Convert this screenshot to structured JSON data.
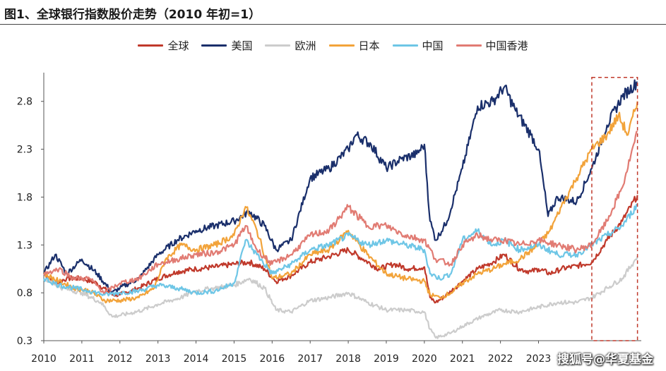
{
  "title": "图1、全球银行指数股价走势（2010 年初=1）",
  "watermark": "搜狐号@华夏基金",
  "chart_data": {
    "type": "line",
    "title": "图1、全球银行指数股价走势（2010 年初=1）",
    "xlabel": "",
    "ylabel": "",
    "xlim": [
      2010,
      2025.7
    ],
    "ylim": [
      0.3,
      3.1
    ],
    "x_ticks": [
      "2010",
      "2011",
      "2012",
      "2013",
      "2014",
      "2015",
      "2016",
      "2017",
      "2018",
      "2019",
      "2020",
      "2021",
      "2022",
      "2023"
    ],
    "y_ticks": [
      "0.3",
      "0.8",
      "1.3",
      "1.8",
      "2.3",
      "2.8"
    ],
    "legend_position": "top",
    "grid": false,
    "highlight_box": {
      "x": [
        2024.4,
        2025.6
      ],
      "y": [
        0.3,
        3.05
      ]
    },
    "series": [
      {
        "name": "全球",
        "color": "#c0392b",
        "x": [
          2010,
          2010.3,
          2010.6,
          2011,
          2011.4,
          2011.8,
          2012,
          2012.5,
          2013,
          2013.5,
          2014,
          2014.5,
          2015,
          2015.4,
          2015.8,
          2016.1,
          2016.5,
          2017,
          2017.5,
          2018,
          2018.4,
          2018.8,
          2019.2,
          2019.6,
          2020,
          2020.15,
          2020.3,
          2020.6,
          2021,
          2021.4,
          2021.8,
          2022.1,
          2022.5,
          2022.8,
          2023,
          2023.3,
          2023.6,
          2024,
          2024.4,
          2024.8,
          2025.2,
          2025.6
        ],
        "values": [
          1.0,
          0.9,
          0.95,
          0.95,
          0.9,
          0.78,
          0.78,
          0.85,
          0.95,
          1.02,
          1.05,
          1.07,
          1.1,
          1.12,
          1.05,
          0.92,
          0.98,
          1.12,
          1.18,
          1.25,
          1.15,
          1.05,
          1.1,
          1.05,
          1.07,
          0.75,
          0.7,
          0.78,
          0.92,
          1.05,
          1.12,
          1.2,
          1.05,
          1.02,
          1.05,
          1.0,
          1.05,
          1.08,
          1.12,
          1.35,
          1.55,
          1.82
        ]
      },
      {
        "name": "美国",
        "color": "#1a2f6b",
        "x": [
          2010,
          2010.3,
          2010.6,
          2011,
          2011.4,
          2011.8,
          2012,
          2012.5,
          2013,
          2013.5,
          2014,
          2014.5,
          2015,
          2015.4,
          2015.8,
          2016.1,
          2016.5,
          2017,
          2017.5,
          2018,
          2018.2,
          2018.6,
          2019,
          2019.4,
          2019.8,
          2020,
          2020.15,
          2020.3,
          2020.6,
          2021,
          2021.4,
          2021.8,
          2022.1,
          2022.4,
          2022.8,
          2023,
          2023.25,
          2023.5,
          2024,
          2024.4,
          2024.8,
          2025.2,
          2025.6
        ],
        "values": [
          1.0,
          1.2,
          1.0,
          1.15,
          1.0,
          0.8,
          0.85,
          0.95,
          1.2,
          1.35,
          1.45,
          1.5,
          1.55,
          1.65,
          1.5,
          1.25,
          1.35,
          2.0,
          2.1,
          2.3,
          2.45,
          2.35,
          2.1,
          2.2,
          2.25,
          2.35,
          1.55,
          1.35,
          1.55,
          2.1,
          2.75,
          2.8,
          2.95,
          2.7,
          2.45,
          2.3,
          1.6,
          1.8,
          1.75,
          2.1,
          2.55,
          2.85,
          3.0
        ]
      },
      {
        "name": "欧洲",
        "color": "#cccccc",
        "x": [
          2010,
          2010.5,
          2011,
          2011.5,
          2011.8,
          2012.2,
          2012.6,
          2013,
          2013.6,
          2014,
          2014.5,
          2015,
          2015.4,
          2015.8,
          2016.1,
          2016.5,
          2017,
          2017.5,
          2018,
          2018.5,
          2019,
          2019.5,
          2020,
          2020.15,
          2020.3,
          2020.7,
          2021,
          2021.5,
          2022,
          2022.5,
          2023,
          2023.5,
          2024,
          2024.4,
          2024.8,
          2025.2,
          2025.6
        ],
        "values": [
          0.95,
          0.85,
          0.8,
          0.7,
          0.55,
          0.58,
          0.62,
          0.68,
          0.75,
          0.82,
          0.85,
          0.88,
          0.95,
          0.85,
          0.62,
          0.6,
          0.72,
          0.75,
          0.8,
          0.7,
          0.62,
          0.62,
          0.6,
          0.42,
          0.33,
          0.38,
          0.45,
          0.55,
          0.62,
          0.6,
          0.65,
          0.7,
          0.7,
          0.75,
          0.85,
          0.95,
          1.18
        ]
      },
      {
        "name": "日本",
        "color": "#f2a33a",
        "x": [
          2010,
          2010.4,
          2010.8,
          2011.2,
          2011.6,
          2012,
          2012.5,
          2012.9,
          2013.2,
          2013.6,
          2014,
          2014.5,
          2015,
          2015.3,
          2015.6,
          2016,
          2016.5,
          2017,
          2017.5,
          2018,
          2018.5,
          2019,
          2019.5,
          2020,
          2020.15,
          2020.4,
          2020.7,
          2021,
          2021.4,
          2021.8,
          2022.1,
          2022.5,
          2023,
          2023.3,
          2023.6,
          2024,
          2024.4,
          2024.8,
          2025.1,
          2025.35,
          2025.6
        ],
        "values": [
          1.0,
          0.92,
          0.85,
          0.82,
          0.72,
          0.72,
          0.75,
          0.85,
          1.15,
          1.3,
          1.25,
          1.3,
          1.4,
          1.7,
          1.45,
          0.95,
          1.0,
          1.2,
          1.25,
          1.45,
          1.2,
          1.0,
          0.95,
          0.92,
          0.78,
          0.75,
          0.8,
          0.9,
          1.0,
          1.05,
          1.1,
          1.15,
          1.3,
          1.45,
          1.7,
          2.0,
          2.3,
          2.45,
          2.65,
          2.45,
          2.8
        ]
      },
      {
        "name": "中国",
        "color": "#6ec6e6",
        "x": [
          2010,
          2010.4,
          2010.8,
          2011.2,
          2011.6,
          2012,
          2012.5,
          2013,
          2013.5,
          2014,
          2014.5,
          2015,
          2015.3,
          2015.6,
          2016,
          2016.5,
          2017,
          2017.5,
          2018,
          2018.5,
          2019,
          2019.5,
          2020,
          2020.15,
          2020.4,
          2020.7,
          2021,
          2021.4,
          2021.8,
          2022.1,
          2022.5,
          2023,
          2023.5,
          2024,
          2024.4,
          2024.8,
          2025.2,
          2025.6
        ],
        "values": [
          0.95,
          0.88,
          0.85,
          0.82,
          0.78,
          0.8,
          0.82,
          0.88,
          0.85,
          0.8,
          0.82,
          0.9,
          1.35,
          1.2,
          1.0,
          1.1,
          1.25,
          1.3,
          1.4,
          1.3,
          1.35,
          1.3,
          1.25,
          1.0,
          0.95,
          1.0,
          1.35,
          1.45,
          1.3,
          1.35,
          1.25,
          1.3,
          1.2,
          1.2,
          1.3,
          1.4,
          1.5,
          1.72
        ]
      },
      {
        "name": "中国香港",
        "color": "#e17b73",
        "x": [
          2010,
          2010.4,
          2010.8,
          2011.2,
          2011.6,
          2012,
          2012.5,
          2013,
          2013.5,
          2014,
          2014.5,
          2015,
          2015.3,
          2015.6,
          2016,
          2016.5,
          2017,
          2017.5,
          2018,
          2018.5,
          2019,
          2019.5,
          2020,
          2020.3,
          2020.7,
          2021,
          2021.4,
          2021.8,
          2022.1,
          2022.5,
          2023,
          2023.5,
          2024,
          2024.4,
          2024.8,
          2025.2,
          2025.6
        ],
        "values": [
          1.0,
          1.05,
          0.95,
          0.95,
          0.8,
          0.9,
          0.95,
          1.1,
          1.15,
          1.2,
          1.22,
          1.3,
          1.5,
          1.25,
          1.1,
          1.2,
          1.4,
          1.45,
          1.7,
          1.5,
          1.5,
          1.4,
          1.35,
          1.15,
          1.1,
          1.3,
          1.4,
          1.35,
          1.35,
          1.3,
          1.35,
          1.3,
          1.25,
          1.3,
          1.55,
          1.9,
          2.48
        ]
      }
    ]
  }
}
